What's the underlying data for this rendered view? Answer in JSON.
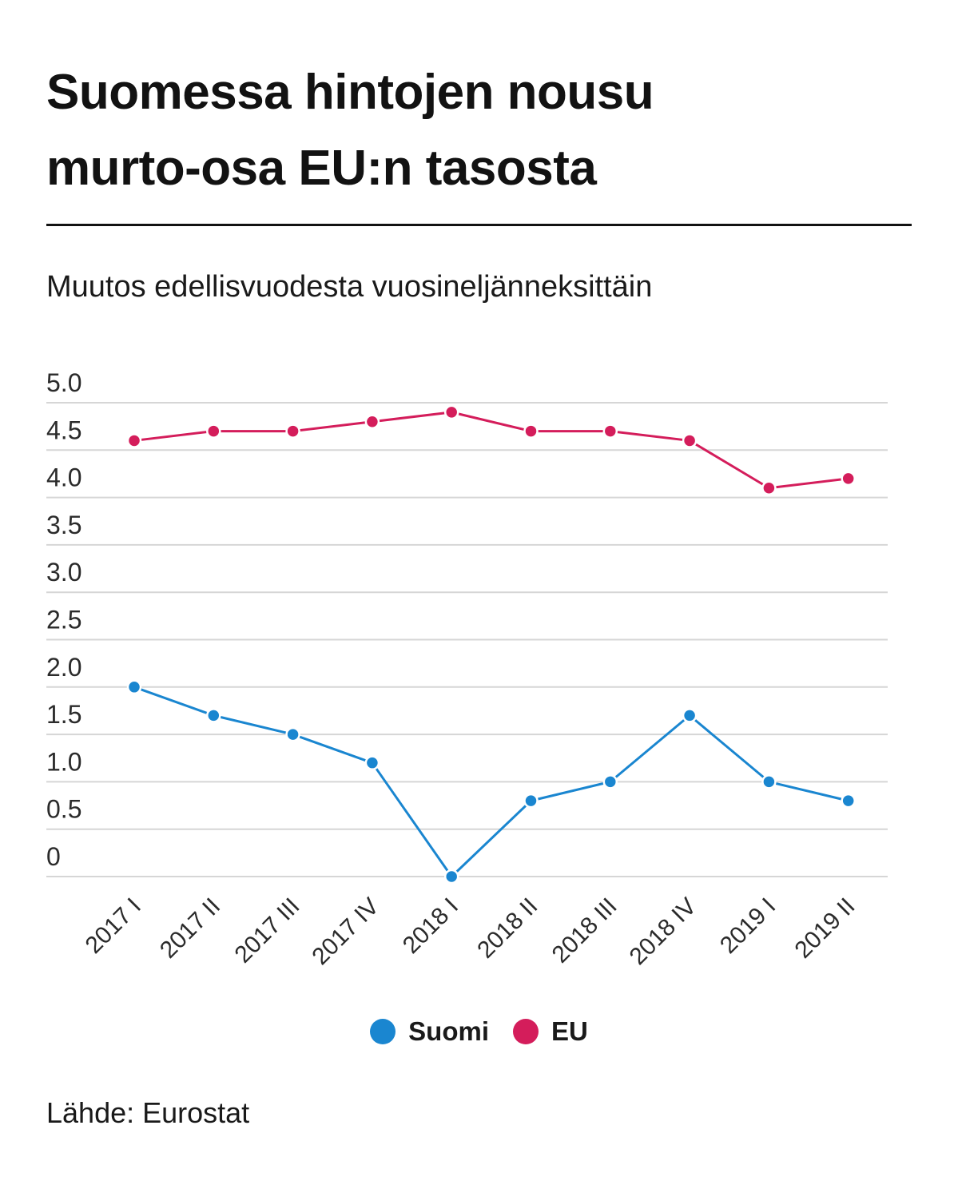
{
  "chart_data": {
    "type": "line",
    "title_lines": [
      "Suomessa hintojen nousu",
      "murto-osa EU:n tasosta"
    ],
    "subtitle": "Muutos edellisvuodesta vuosineljänneksittäin",
    "categories": [
      "2017 I",
      "2017 II",
      "2017 III",
      "2017 IV",
      "2018 I",
      "2018 II",
      "2018 III",
      "2018 IV",
      "2019 I",
      "2019 II"
    ],
    "y_ticks": [
      "5.0",
      "4.5",
      "4.0",
      "3.5",
      "3.0",
      "2.5",
      "2.0",
      "1.5",
      "1.0",
      "0.5",
      "0"
    ],
    "ylim": [
      0,
      5
    ],
    "grid": true,
    "legend_position": "bottom-center",
    "series": [
      {
        "name": "Suomi",
        "color": "#1a86d0",
        "values": [
          2.0,
          1.7,
          1.5,
          1.2,
          0.0,
          0.8,
          1.0,
          1.7,
          1.0,
          0.8
        ]
      },
      {
        "name": "EU",
        "color": "#d41d5b",
        "values": [
          4.6,
          4.7,
          4.7,
          4.8,
          4.9,
          4.7,
          4.7,
          4.6,
          4.1,
          4.2
        ]
      }
    ],
    "source": "Lähde: Eurostat"
  }
}
